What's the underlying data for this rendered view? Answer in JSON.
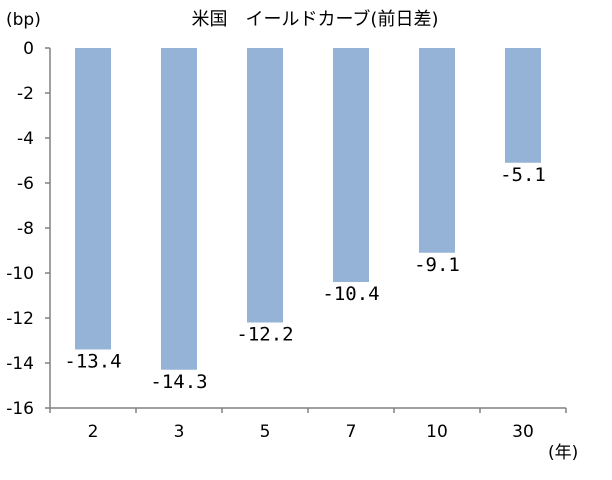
{
  "chart_data": {
    "type": "bar",
    "title": "米国　イールドカーブ(前日差)",
    "ylabel": "(bp)",
    "xlabel": "(年)",
    "categories": [
      "2",
      "3",
      "5",
      "7",
      "10",
      "30"
    ],
    "values": [
      -13.4,
      -14.3,
      -12.2,
      -10.4,
      -9.1,
      -5.1
    ],
    "data_labels": [
      "-13.4",
      "-14.3",
      "-12.2",
      "-10.4",
      "-9.1",
      "-5.1"
    ],
    "ylim": [
      -16,
      0
    ],
    "yticks": [
      0,
      -2,
      -4,
      -6,
      -8,
      -10,
      -12,
      -14,
      -16
    ],
    "ytick_labels": [
      "0",
      "-2",
      "-4",
      "-6",
      "-8",
      "-10",
      "-12",
      "-14",
      "-16"
    ],
    "grid": false,
    "legend": "none",
    "bar_color": "#95b3d7",
    "axis_color": "#808080"
  }
}
